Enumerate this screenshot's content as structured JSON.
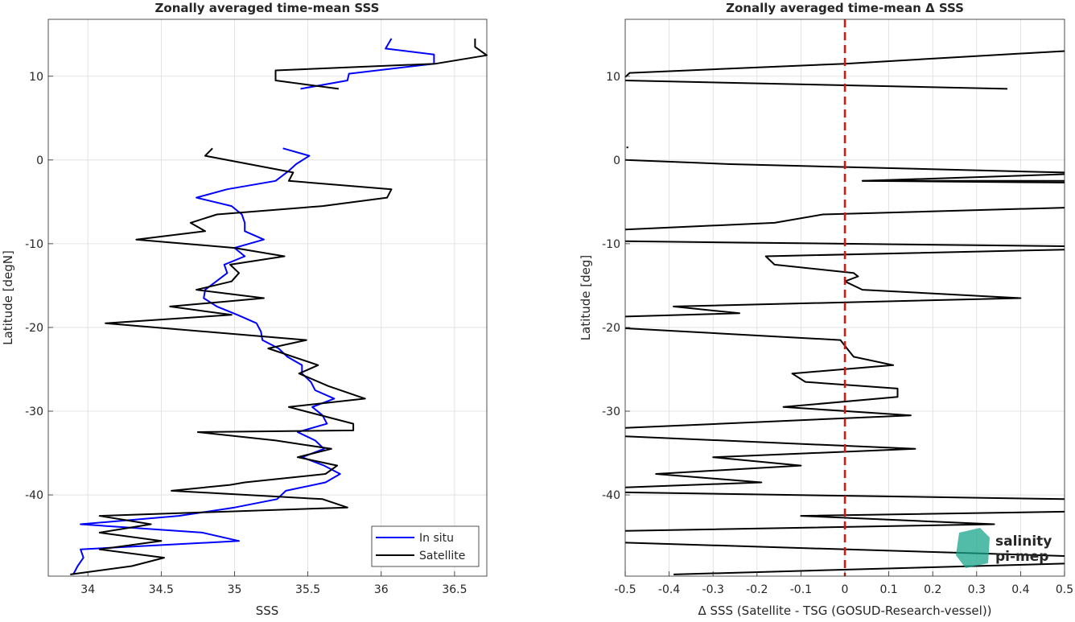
{
  "colors": {
    "insitu": "#0000ff",
    "satellite": "#000000",
    "zero_line": "#e01010",
    "logo": "#1aa58c"
  },
  "logo": {
    "line1": "salinity",
    "line2": "pi-mep"
  },
  "chart_data": [
    {
      "type": "line",
      "title": "Zonally averaged time-mean SSS",
      "xlabel": "SSS",
      "ylabel": "Latitude [degN]",
      "xlim": [
        33.73,
        36.72
      ],
      "ylim": [
        -49.7,
        16.8
      ],
      "xticks": [
        34,
        34.5,
        35,
        35.5,
        36,
        36.5
      ],
      "xtick_labels": [
        "34",
        "34.5",
        "35",
        "35.5",
        "36",
        "36.5"
      ],
      "yticks": [
        -40,
        -30,
        -20,
        -10,
        0,
        10
      ],
      "ytick_labels": [
        "-40",
        "-30",
        "-20",
        "-10",
        "0",
        "10"
      ],
      "grid": true,
      "legend_position": "bottom-right",
      "series": [
        {
          "name": "In situ",
          "segments": [
            [
              [
                36.07,
                14.5
              ],
              [
                36.03,
                13.3
              ],
              [
                36.36,
                12.6
              ],
              [
                36.36,
                11.5
              ],
              [
                35.78,
                10.3
              ],
              [
                35.77,
                9.5
              ],
              [
                35.45,
                8.5
              ]
            ],
            [
              [
                35.33,
                1.4
              ],
              [
                35.51,
                0.5
              ],
              [
                35.42,
                -0.5
              ],
              [
                35.37,
                -1.3
              ],
              [
                35.28,
                -2.5
              ],
              [
                34.95,
                -3.5
              ],
              [
                34.74,
                -4.5
              ],
              [
                34.98,
                -5.5
              ],
              [
                35.05,
                -6.5
              ],
              [
                35.07,
                -7.5
              ],
              [
                35.07,
                -8.5
              ],
              [
                35.2,
                -9.5
              ],
              [
                35.0,
                -10.5
              ],
              [
                35.07,
                -11.5
              ],
              [
                34.93,
                -12.5
              ],
              [
                34.95,
                -13.5
              ],
              [
                34.8,
                -15.5
              ],
              [
                34.79,
                -16.5
              ],
              [
                34.88,
                -17.5
              ],
              [
                35.02,
                -18.5
              ],
              [
                35.15,
                -19.5
              ],
              [
                35.18,
                -20.5
              ],
              [
                35.19,
                -21.5
              ],
              [
                35.3,
                -22.5
              ],
              [
                35.36,
                -23.5
              ],
              [
                35.46,
                -24.5
              ],
              [
                35.46,
                -25.5
              ],
              [
                35.52,
                -26.5
              ],
              [
                35.55,
                -27.5
              ],
              [
                35.68,
                -28.5
              ],
              [
                35.53,
                -29.5
              ],
              [
                35.6,
                -30.5
              ],
              [
                35.63,
                -31.5
              ],
              [
                35.43,
                -32.5
              ],
              [
                35.55,
                -33.5
              ],
              [
                35.61,
                -34.5
              ],
              [
                35.46,
                -35.5
              ],
              [
                35.61,
                -36.5
              ],
              [
                35.72,
                -37.5
              ],
              [
                35.62,
                -38.5
              ],
              [
                35.35,
                -39.5
              ],
              [
                35.29,
                -40.5
              ],
              [
                35.0,
                -41.5
              ],
              [
                34.62,
                -42.5
              ],
              [
                33.95,
                -43.5
              ],
              [
                34.78,
                -44.5
              ],
              [
                35.03,
                -45.5
              ],
              [
                33.95,
                -46.5
              ],
              [
                33.97,
                -47.5
              ],
              [
                33.93,
                -48.5
              ],
              [
                33.9,
                -49.5
              ]
            ]
          ]
        },
        {
          "name": "Satellite",
          "segments": [
            [
              [
                36.64,
                14.5
              ],
              [
                36.64,
                13.5
              ],
              [
                36.72,
                12.5
              ],
              [
                36.37,
                11.5
              ],
              [
                35.28,
                10.7
              ],
              [
                35.28,
                9.5
              ],
              [
                35.71,
                8.5
              ]
            ],
            [
              [
                34.85,
                1.4
              ],
              [
                34.8,
                0.5
              ],
              [
                35.4,
                -1.5
              ],
              [
                35.37,
                -2.5
              ],
              [
                36.07,
                -3.5
              ],
              [
                36.04,
                -4.5
              ],
              [
                35.6,
                -5.5
              ],
              [
                34.88,
                -6.5
              ],
              [
                34.7,
                -7.5
              ],
              [
                34.8,
                -8.5
              ],
              [
                34.33,
                -9.5
              ],
              [
                35.0,
                -10.5
              ],
              [
                35.34,
                -11.5
              ],
              [
                34.97,
                -12.5
              ],
              [
                35.03,
                -13.5
              ],
              [
                34.98,
                -14.5
              ],
              [
                34.74,
                -15.5
              ],
              [
                35.2,
                -16.5
              ],
              [
                34.56,
                -17.5
              ],
              [
                34.98,
                -18.5
              ],
              [
                34.12,
                -19.5
              ],
              [
                35.49,
                -21.5
              ],
              [
                35.23,
                -22.5
              ],
              [
                35.57,
                -24.5
              ],
              [
                35.44,
                -25.5
              ],
              [
                35.64,
                -27.0
              ],
              [
                35.89,
                -28.5
              ],
              [
                35.37,
                -29.5
              ],
              [
                35.81,
                -31.5
              ],
              [
                35.81,
                -32.3
              ],
              [
                34.75,
                -32.5
              ],
              [
                35.28,
                -33.5
              ],
              [
                35.66,
                -34.5
              ],
              [
                35.43,
                -35.5
              ],
              [
                35.7,
                -36.5
              ],
              [
                35.62,
                -37.5
              ],
              [
                35.07,
                -38.5
              ],
              [
                34.97,
                -38.8
              ],
              [
                34.57,
                -39.5
              ],
              [
                35.6,
                -40.5
              ],
              [
                35.77,
                -41.5
              ],
              [
                34.08,
                -42.5
              ],
              [
                34.43,
                -43.5
              ],
              [
                34.08,
                -44.5
              ],
              [
                34.5,
                -45.5
              ],
              [
                34.08,
                -46.5
              ],
              [
                34.52,
                -47.5
              ],
              [
                34.3,
                -48.5
              ],
              [
                33.88,
                -49.5
              ]
            ]
          ]
        }
      ]
    },
    {
      "type": "line",
      "title": "Zonally averaged time-mean Δ SSS",
      "xlabel": "Δ SSS (Satellite - TSG (GOSUD-Research-vessel))",
      "ylabel": "Latitude [deg]",
      "xlim": [
        -0.5,
        0.5
      ],
      "ylim": [
        -49.7,
        16.8
      ],
      "xticks": [
        -0.5,
        -0.4,
        -0.3,
        -0.2,
        -0.1,
        0,
        0.1,
        0.2,
        0.3,
        0.4,
        0.5
      ],
      "xtick_labels": [
        "-0.5",
        "-0.4",
        "-0.3",
        "-0.2",
        "-0.1",
        "0",
        "0.1",
        "0.2",
        "0.3",
        "0.4",
        "0.5"
      ],
      "yticks": [
        -40,
        -30,
        -20,
        -10,
        0,
        10
      ],
      "ytick_labels": [
        "-40",
        "-30",
        "-20",
        "-10",
        "0",
        "10"
      ],
      "grid": true,
      "reference_line_x": 0,
      "series": [
        {
          "segments": [
            [
              [
                -0.5,
                9.9
              ],
              [
                -0.49,
                10.4
              ],
              [
                0.0,
                11.5
              ],
              [
                0.33,
                12.5
              ],
              [
                0.5,
                13.0
              ]
            ],
            [
              [
                -0.5,
                9.5
              ],
              [
                0.37,
                8.5
              ]
            ],
            [
              [
                -0.497,
                1.5
              ],
              [
                -0.493,
                1.5
              ]
            ],
            [
              [
                -0.5,
                0.0
              ],
              [
                -0.26,
                -0.5
              ],
              [
                0.5,
                -1.5
              ]
            ],
            [
              [
                0.5,
                -2.5
              ],
              [
                0.04,
                -2.5
              ],
              [
                0.5,
                -1.7
              ]
            ],
            [
              [
                0.5,
                -2.7
              ],
              [
                0.04,
                -2.5
              ]
            ],
            [
              [
                0.5,
                -5.7
              ],
              [
                -0.05,
                -6.5
              ],
              [
                -0.16,
                -7.5
              ],
              [
                -0.5,
                -8.3
              ]
            ],
            [
              [
                -0.5,
                -9.7
              ],
              [
                0.5,
                -10.3
              ]
            ],
            [
              [
                0.5,
                -10.7
              ],
              [
                -0.18,
                -11.5
              ],
              [
                -0.16,
                -12.5
              ],
              [
                0.02,
                -13.5
              ],
              [
                0.03,
                -13.9
              ],
              [
                0.0,
                -14.5
              ],
              [
                0.04,
                -15.5
              ],
              [
                0.4,
                -16.5
              ],
              [
                -0.39,
                -17.5
              ],
              [
                -0.24,
                -18.3
              ],
              [
                -0.5,
                -18.7
              ]
            ],
            [
              [
                -0.5,
                -20.1
              ],
              [
                -0.01,
                -21.5
              ],
              [
                0.0,
                -22.2
              ],
              [
                0.02,
                -23.5
              ],
              [
                0.11,
                -24.5
              ],
              [
                -0.12,
                -25.5
              ],
              [
                -0.09,
                -26.5
              ],
              [
                0.12,
                -27.3
              ],
              [
                0.12,
                -28.3
              ],
              [
                -0.14,
                -29.5
              ],
              [
                0.15,
                -30.5
              ],
              [
                -0.5,
                -32.0
              ]
            ],
            [
              [
                -0.5,
                -33.0
              ],
              [
                0.16,
                -34.5
              ],
              [
                -0.3,
                -35.5
              ],
              [
                -0.1,
                -36.5
              ],
              [
                -0.43,
                -37.5
              ],
              [
                -0.19,
                -38.5
              ],
              [
                -0.5,
                -39.1
              ]
            ],
            [
              [
                -0.5,
                -39.7
              ],
              [
                0.5,
                -40.5
              ]
            ],
            [
              [
                0.5,
                -42.0
              ],
              [
                -0.1,
                -42.5
              ],
              [
                0.34,
                -43.5
              ],
              [
                -0.5,
                -44.3
              ]
            ],
            [
              [
                -0.5,
                -45.7
              ],
              [
                0.5,
                -47.3
              ]
            ],
            [
              [
                0.5,
                -48.2
              ],
              [
                -0.39,
                -49.5
              ]
            ]
          ]
        }
      ]
    }
  ]
}
